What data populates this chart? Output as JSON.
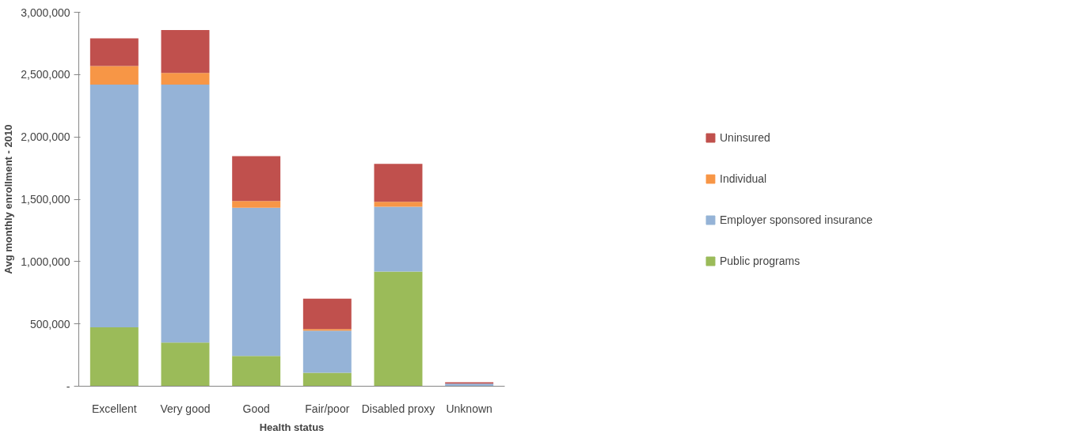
{
  "chart_data": {
    "type": "bar",
    "stacked": true,
    "xlabel": "Health status",
    "ylabel": "Avg monthly enrollment - 2010",
    "categories": [
      "Excellent",
      "Very good",
      "Good",
      "Fair/poor",
      "Disabled proxy",
      "Unknown"
    ],
    "series": [
      {
        "name": "Public programs",
        "color": "#9bbb59",
        "values": [
          473000,
          351000,
          243000,
          108000,
          919000,
          3000
        ]
      },
      {
        "name": "Employer sponsored insurance",
        "color": "#95b3d7",
        "values": [
          1946000,
          2068000,
          1189000,
          338000,
          520000,
          18000
        ]
      },
      {
        "name": "Individual",
        "color": "#f79646",
        "values": [
          149000,
          95000,
          54000,
          13000,
          41000,
          null
        ]
      },
      {
        "name": "Uninsured",
        "color": "#c0504d",
        "values": [
          223000,
          344000,
          359000,
          244000,
          304000,
          10000
        ]
      }
    ],
    "ylim": [
      0,
      3000000
    ],
    "yticks": [
      {
        "value": 0,
        "label": "-"
      },
      {
        "value": 500000,
        "label": "500,000"
      },
      {
        "value": 1000000,
        "label": "1,000,000"
      },
      {
        "value": 1500000,
        "label": "1,500,000"
      },
      {
        "value": 2000000,
        "label": "2,000,000"
      },
      {
        "value": 2500000,
        "label": "2,500,000"
      },
      {
        "value": 3000000,
        "label": "3,000,000"
      }
    ],
    "grid": false,
    "legend": "right"
  }
}
